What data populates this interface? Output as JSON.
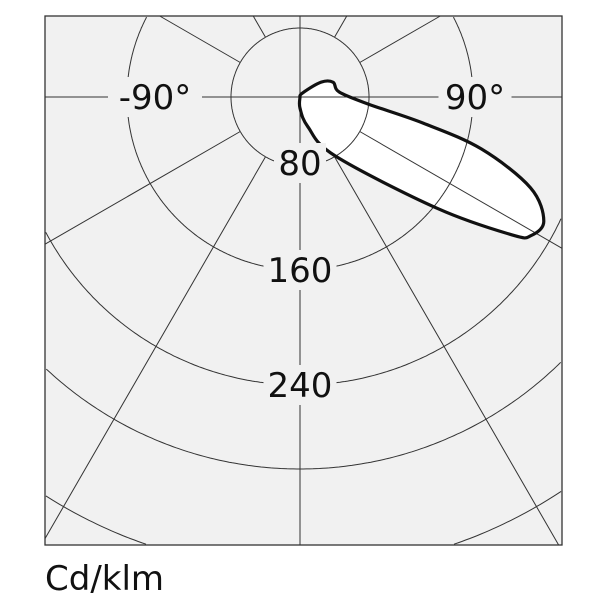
{
  "chart_data": {
    "type": "polar-line",
    "title": "",
    "unit_label": "Cd/klm",
    "angle_labels": [
      {
        "angle": -90,
        "text": "-90°"
      },
      {
        "angle": 90,
        "text": "90°"
      }
    ],
    "radial_tick_labels": [
      "80",
      "160",
      "240"
    ],
    "rings": [
      80,
      160,
      240,
      320,
      400
    ],
    "spokes_deg": [
      -150,
      -120,
      -90,
      -60,
      -30,
      0,
      30,
      60,
      90,
      120,
      150,
      180
    ],
    "grid": true,
    "series": [
      {
        "angles_deg": [
          0,
          15,
          31,
          51,
          57,
          59,
          63,
          68.5,
          74,
          78,
          84,
          97,
          114,
          125,
          150
        ],
        "intensity": [
          13,
          36,
          80,
          163,
          216,
          227,
          230,
          212,
          171,
          124,
          80,
          46,
          42,
          30,
          5
        ],
        "color": "#111111",
        "fill": "#ffffff"
      }
    ],
    "colors": {
      "background": "#f1f1f1",
      "grid": "#333333",
      "curve": "#111111"
    }
  }
}
